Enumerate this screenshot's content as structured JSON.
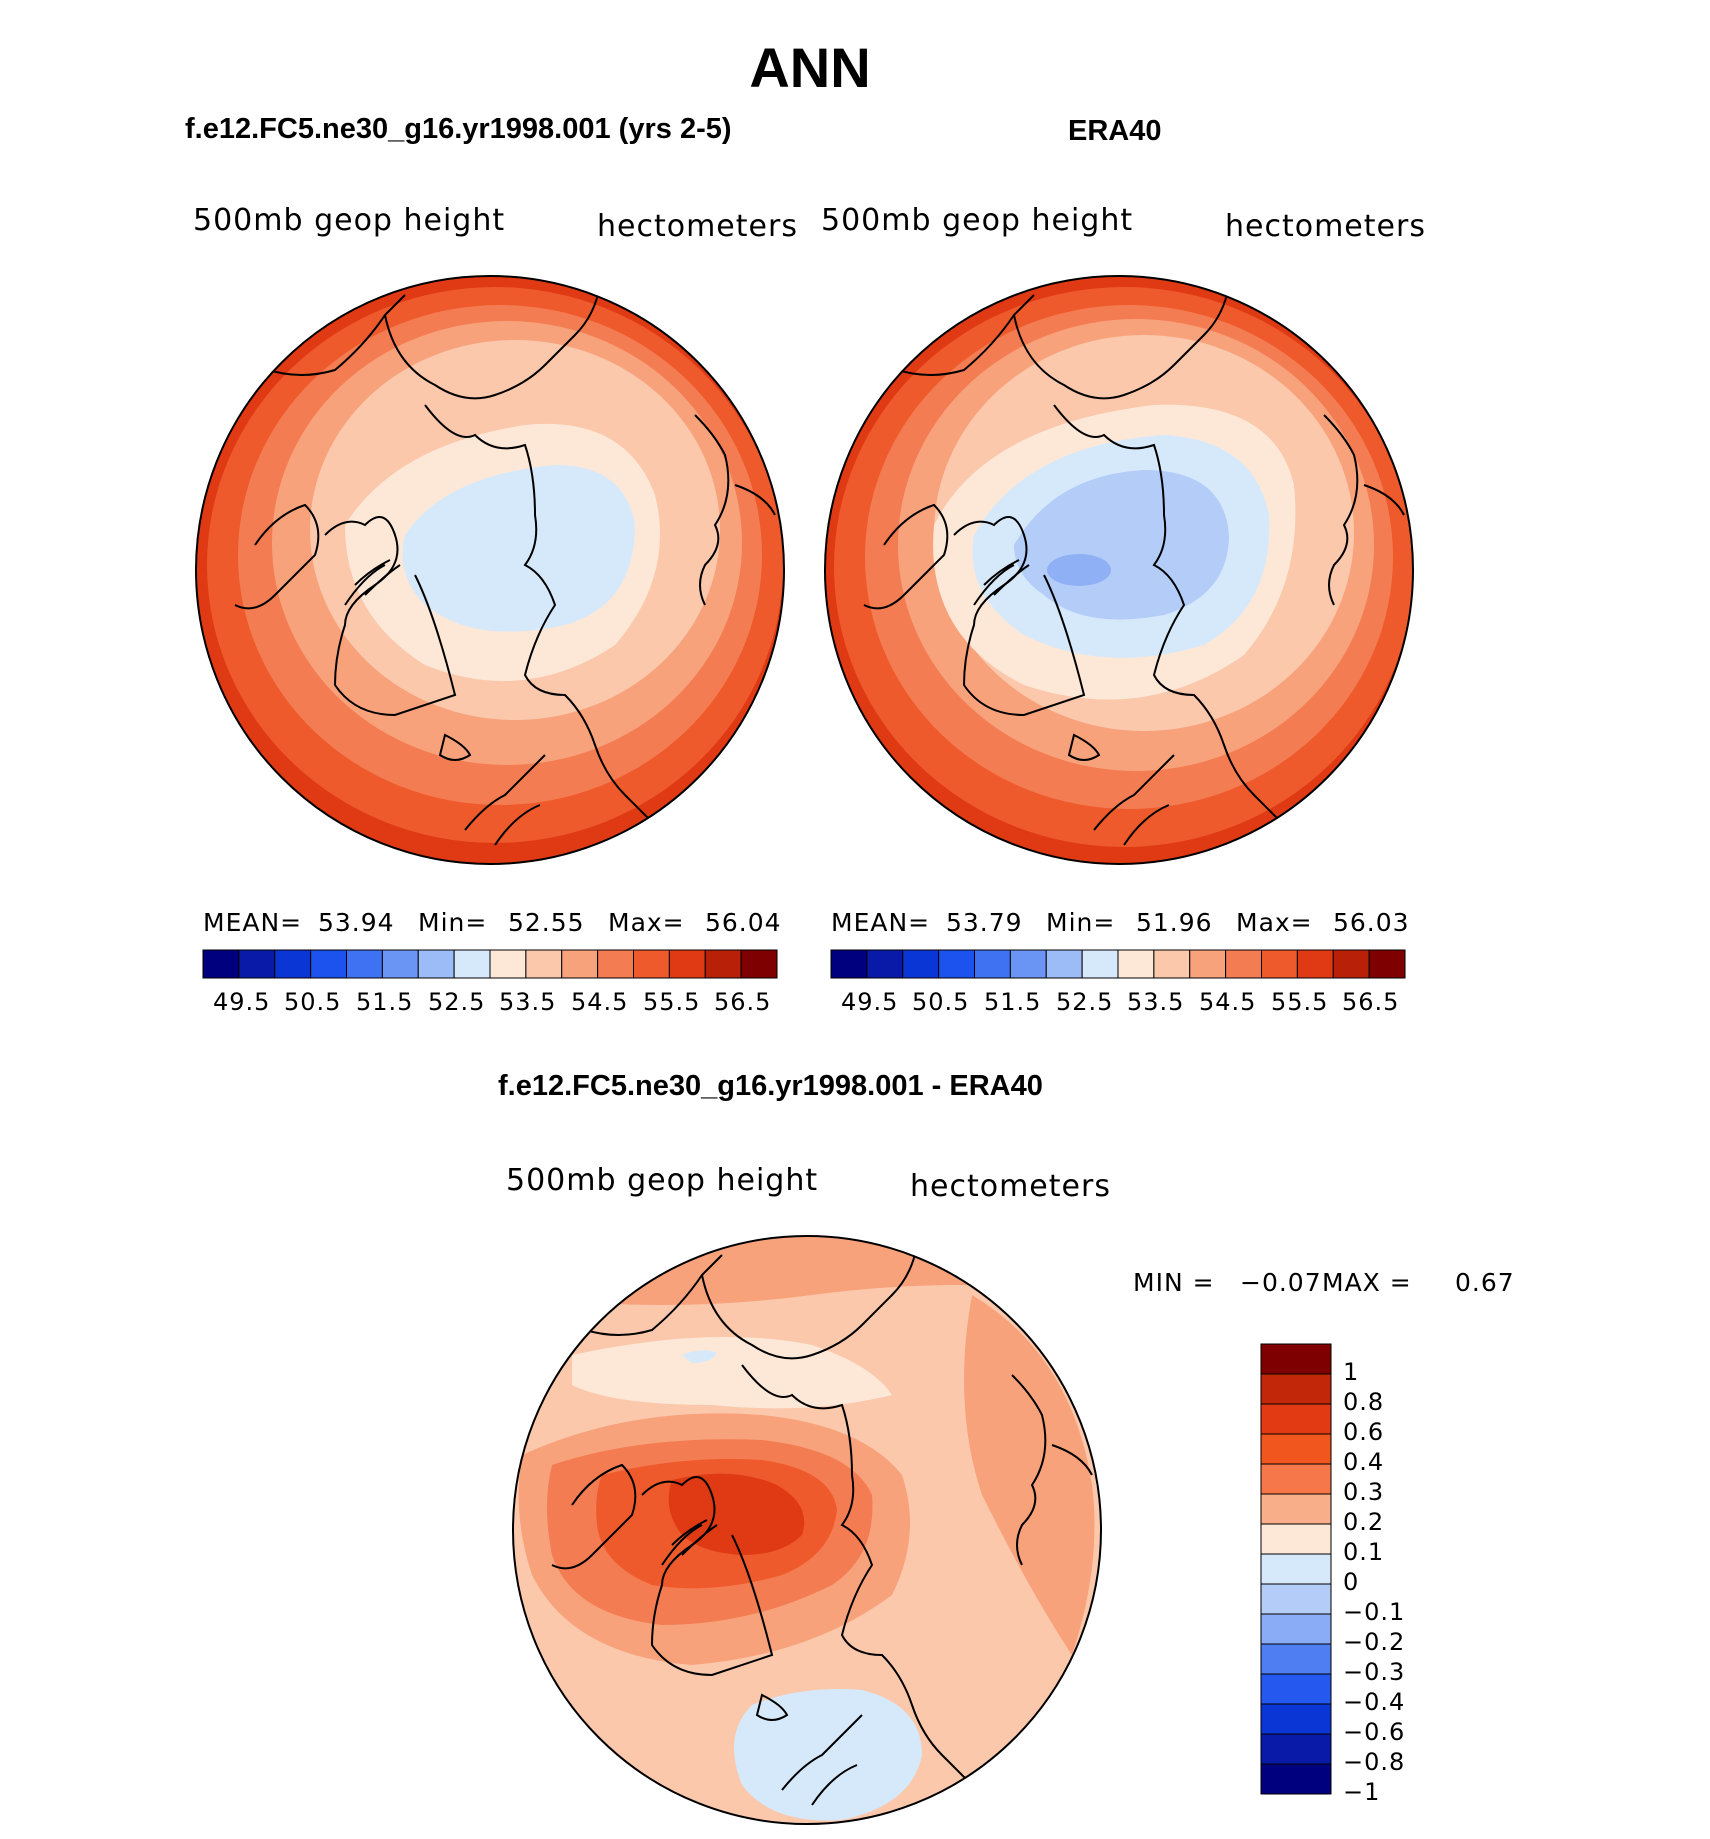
{
  "title": "ANN",
  "panels": [
    {
      "title": "f.e12.FC5.ne30_g16.yr1998.001 (yrs 2-5)",
      "left_label": "500mb geop height",
      "right_label": "hectometers",
      "stats": {
        "mean_label": "MEAN=",
        "mean": "53.94",
        "min_label": "Min=",
        "min": "52.55",
        "max_label": "Max=",
        "max": "56.04"
      },
      "bands": [
        {
          "level": "52.5-53.0",
          "color": "#d6e9fb"
        },
        {
          "level": "53.0-53.5",
          "color": "#fde8d8"
        },
        {
          "level": "53.5-54.0",
          "color": "#fbc8ac"
        },
        {
          "level": "54.0-54.5",
          "color": "#f8a27c"
        },
        {
          "level": "54.5-55.0",
          "color": "#f47c52"
        },
        {
          "level": "55.0-55.5",
          "color": "#ee5a2c"
        },
        {
          "level": "55.5-56.0",
          "color": "#e03a14"
        }
      ]
    },
    {
      "title": "ERA40",
      "left_label": "500mb geop height",
      "right_label": "hectometers",
      "stats": {
        "mean_label": "MEAN=",
        "mean": "53.79",
        "min_label": "Min=",
        "min": "51.96",
        "max_label": "Max=",
        "max": "56.03"
      },
      "bands": [
        {
          "level": "51.5-52.0",
          "color": "#8fb0f5"
        },
        {
          "level": "52.0-52.5",
          "color": "#b4cdf8"
        },
        {
          "level": "52.5-53.0",
          "color": "#d6e9fb"
        },
        {
          "level": "53.0-53.5",
          "color": "#fde8d8"
        },
        {
          "level": "53.5-54.0",
          "color": "#fbc8ac"
        },
        {
          "level": "54.0-54.5",
          "color": "#f8a27c"
        },
        {
          "level": "54.5-55.0",
          "color": "#f47c52"
        },
        {
          "level": "55.0-55.5",
          "color": "#ee5a2c"
        },
        {
          "level": "55.5-56.0",
          "color": "#e03a14"
        }
      ]
    }
  ],
  "top_colorbar": {
    "colors": [
      "#00007f",
      "#0a1aa8",
      "#0b36d6",
      "#1c52ee",
      "#3f72f2",
      "#6b95f4",
      "#9bbcf7",
      "#d6e9fb",
      "#fde8d8",
      "#fbc8ac",
      "#f8a27c",
      "#f47c52",
      "#ee5a2c",
      "#e03a14",
      "#b82108",
      "#7f0000"
    ],
    "ticks": [
      "49.5",
      "50.5",
      "51.5",
      "52.5",
      "53.5",
      "54.5",
      "55.5",
      "56.5"
    ]
  },
  "diff_panel": {
    "title": "f.e12.FC5.ne30_g16.yr1998.001 - ERA40",
    "left_label": "500mb geop height",
    "right_label": "hectometers",
    "stats": {
      "min_label": "MIN =",
      "min": "−0.07",
      "max_label": "MAX =",
      "max": "0.67"
    },
    "colorbar": {
      "colors_top_to_bottom": [
        "#7f0000",
        "#c3270a",
        "#e23a12",
        "#f2561f",
        "#f6784a",
        "#f9ae8a",
        "#fde8d8",
        "#d6e9fb",
        "#b4cdf8",
        "#8aabf5",
        "#4f7ef2",
        "#2558ee",
        "#0b36d6",
        "#0a1aa8",
        "#00007f"
      ],
      "labels_top_to_bottom": [
        "1",
        "0.8",
        "0.6",
        "0.4",
        "0.3",
        "0.2",
        "0.1",
        "0",
        "−0.1",
        "−0.2",
        "−0.3",
        "−0.4",
        "−0.6",
        "−0.8",
        "−1"
      ]
    }
  },
  "map": {
    "projection": "north polar stereographic",
    "coastline_color": "#000000"
  }
}
